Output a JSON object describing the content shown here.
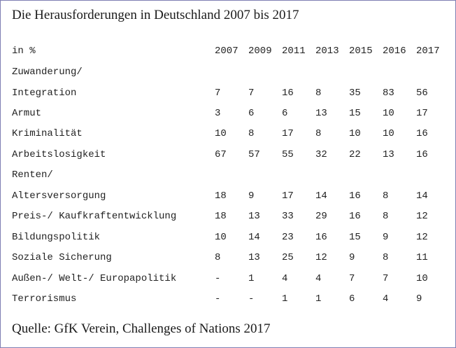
{
  "chart_data": {
    "type": "table",
    "title": "Die Herausforderungen in Deutschland 2007 bis 2017",
    "unit_label": "in %",
    "years": [
      "2007",
      "2009",
      "2011",
      "2013",
      "2015",
      "2016",
      "2017"
    ],
    "rows": [
      {
        "label_lines": [
          "Zuwanderung/",
          "Integration"
        ],
        "values": [
          "7",
          "7",
          "16",
          "8",
          "35",
          "83",
          "56"
        ]
      },
      {
        "label_lines": [
          "Armut"
        ],
        "values": [
          "3",
          "6",
          "6",
          "13",
          "15",
          "10",
          "17"
        ]
      },
      {
        "label_lines": [
          "Kriminalität"
        ],
        "values": [
          "10",
          "8",
          "17",
          "8",
          "10",
          "10",
          "16"
        ]
      },
      {
        "label_lines": [
          "Arbeitslosigkeit"
        ],
        "values": [
          "67",
          "57",
          "55",
          "32",
          "22",
          "13",
          "16"
        ]
      },
      {
        "label_lines": [
          "Renten/",
          "Altersversorgung"
        ],
        "values": [
          "18",
          "9",
          "17",
          "14",
          "16",
          "8",
          "14"
        ]
      },
      {
        "label_lines": [
          "Preis-/ Kaufkraftentwicklung"
        ],
        "values": [
          "18",
          "13",
          "33",
          "29",
          "16",
          "8",
          "12"
        ]
      },
      {
        "label_lines": [
          "Bildungspolitik"
        ],
        "values": [
          "10",
          "14",
          "23",
          "16",
          "15",
          "9",
          "12"
        ]
      },
      {
        "label_lines": [
          "Soziale Sicherung"
        ],
        "values": [
          "8",
          "13",
          "25",
          "12",
          "9",
          "8",
          "11"
        ]
      },
      {
        "label_lines": [
          "Außen-/ Welt-/ Europapolitik"
        ],
        "values": [
          "-",
          "1",
          "4",
          "4",
          "7",
          "7",
          "10"
        ]
      },
      {
        "label_lines": [
          "Terrorismus"
        ],
        "values": [
          "-",
          "-",
          "1",
          "1",
          "6",
          "4",
          "9"
        ]
      }
    ],
    "source": "Quelle: GfK Verein, Challenges of Nations 2017"
  }
}
